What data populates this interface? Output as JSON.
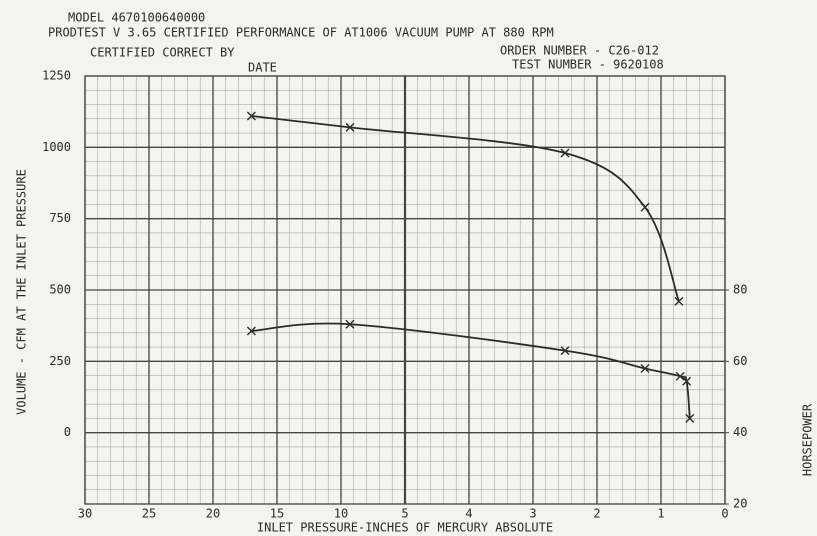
{
  "chart_data": {
    "type": "line",
    "header": [
      "MODEL 4670100640000",
      "PRODTEST V 3.65 CERTIFIED PERFORMANCE OF  AT1006 VACUUM PUMP AT  880 RPM",
      "CERTIFIED CORRECT BY",
      "DATE",
      "ORDER NUMBER - C26-012",
      "TEST NUMBER - 9620108"
    ],
    "xlabel": "INLET PRESSURE-INCHES OF MERCURY ABSOLUTE",
    "ylabel": "VOLUME - CFM AT THE INLET PRESSURE",
    "y2label": "HORSEPOWER",
    "xlim": [
      30,
      0
    ],
    "xticks": [
      30,
      25,
      20,
      15,
      10,
      5,
      4,
      3,
      2,
      1,
      0
    ],
    "ylim": [
      -250,
      1250
    ],
    "yticks": [
      0,
      250,
      500,
      750,
      1000,
      1250
    ],
    "y2lim": [
      20,
      140
    ],
    "y2ticks": [
      20,
      40,
      60,
      80
    ],
    "grid": true,
    "series": [
      {
        "color": "#2b2b2b",
        "x": [
          17,
          9.3,
          2.5,
          1.25,
          0.72
        ],
        "values": [
          1110,
          1070,
          980,
          790,
          460
        ]
      },
      {
        "color": "#2b2b2b",
        "axis": "y2",
        "x": [
          17,
          9.3,
          2.5,
          1.25,
          0.7,
          0.6,
          0.55
        ],
        "values": [
          68.5,
          70.4,
          63,
          58,
          55.8,
          54.4,
          44
        ]
      }
    ]
  }
}
